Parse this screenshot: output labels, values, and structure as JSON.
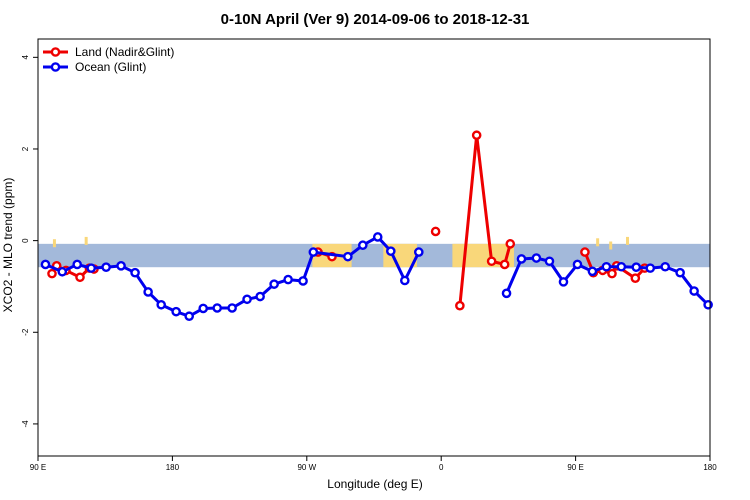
{
  "chart_data": {
    "type": "line",
    "title": "0-10N April (Ver 9)   2014-09-06 to 2018-12-31",
    "xlabel": "Longitude (deg E)",
    "ylabel": "XCO2 - MLO trend (ppm)",
    "xlim": [
      90,
      450
    ],
    "ylim": [
      -4.7,
      4.4
    ],
    "x_ticks": [
      {
        "value": 90,
        "label": "90 E"
      },
      {
        "value": 162,
        "label": "180"
      },
      {
        "value": 234,
        "label": "90 W"
      },
      {
        "value": 306,
        "label": "0"
      },
      {
        "value": 378,
        "label": "90 E"
      },
      {
        "value": 450,
        "label": "180"
      }
    ],
    "y_ticks": [
      {
        "value": -4,
        "label": "-4"
      },
      {
        "value": -2,
        "label": "-2"
      },
      {
        "value": 0,
        "label": "0"
      },
      {
        "value": 2,
        "label": "2"
      },
      {
        "value": 4,
        "label": "4"
      }
    ],
    "grid": false,
    "legend_position": "top-left",
    "band": {
      "y_min": -0.58,
      "y_max": -0.07,
      "color": "#a3b9da",
      "land_color": "#f9d77a"
    },
    "series": [
      {
        "name": "Land (Nadir&Glint)",
        "color": "#ee0000",
        "segments": [
          [
            [
              97.5,
              -0.72
            ],
            [
              100,
              -0.55
            ],
            [
              105,
              -0.65
            ],
            [
              112.5,
              -0.8
            ],
            [
              117.5,
              -0.6
            ],
            [
              120,
              -0.62
            ]
          ],
          [
            [
              240,
              -0.25
            ],
            [
              247.5,
              -0.35
            ]
          ],
          [
            [
              303,
              0.2
            ]
          ],
          [
            [
              316,
              -1.42
            ],
            [
              325,
              2.3
            ],
            [
              333,
              -0.45
            ],
            [
              340,
              -0.52
            ],
            [
              343,
              -0.07
            ]
          ],
          [
            [
              383,
              -0.25
            ],
            [
              387.5,
              -0.7
            ],
            [
              392.5,
              -0.65
            ],
            [
              397.5,
              -0.72
            ],
            [
              400,
              -0.55
            ],
            [
              410,
              -0.82
            ],
            [
              415,
              -0.6
            ]
          ]
        ]
      },
      {
        "name": "Ocean (Glint)",
        "color": "#0000ee",
        "segments": [
          [
            [
              94,
              -0.52
            ],
            [
              103,
              -0.68
            ],
            [
              111,
              -0.52
            ],
            [
              118.5,
              -0.6
            ],
            [
              126.5,
              -0.58
            ],
            [
              134.5,
              -0.55
            ],
            [
              142,
              -0.7
            ],
            [
              149,
              -1.12
            ],
            [
              156,
              -1.4
            ],
            [
              164,
              -1.55
            ],
            [
              171,
              -1.65
            ],
            [
              178.5,
              -1.48
            ],
            [
              186,
              -1.47
            ],
            [
              194,
              -1.47
            ],
            [
              202,
              -1.28
            ],
            [
              209,
              -1.22
            ],
            [
              216.5,
              -0.95
            ],
            [
              224,
              -0.85
            ],
            [
              232,
              -0.88
            ],
            [
              237.5,
              -0.25
            ],
            [
              256,
              -0.35
            ],
            [
              264,
              -0.1
            ],
            [
              272,
              0.08
            ],
            [
              279,
              -0.23
            ],
            [
              286.5,
              -0.87
            ],
            [
              294,
              -0.25
            ]
          ],
          [
            [
              341,
              -1.15
            ],
            [
              349,
              -0.4
            ],
            [
              357,
              -0.38
            ],
            [
              364,
              -0.45
            ],
            [
              371.5,
              -0.9
            ],
            [
              379,
              -0.52
            ],
            [
              387,
              -0.67
            ],
            [
              394.5,
              -0.57
            ],
            [
              402.5,
              -0.57
            ],
            [
              410.5,
              -0.58
            ],
            [
              418,
              -0.6
            ],
            [
              426,
              -0.57
            ],
            [
              434,
              -0.7
            ],
            [
              441.5,
              -1.1
            ],
            [
              449,
              -1.4
            ]
          ]
        ]
      }
    ]
  }
}
